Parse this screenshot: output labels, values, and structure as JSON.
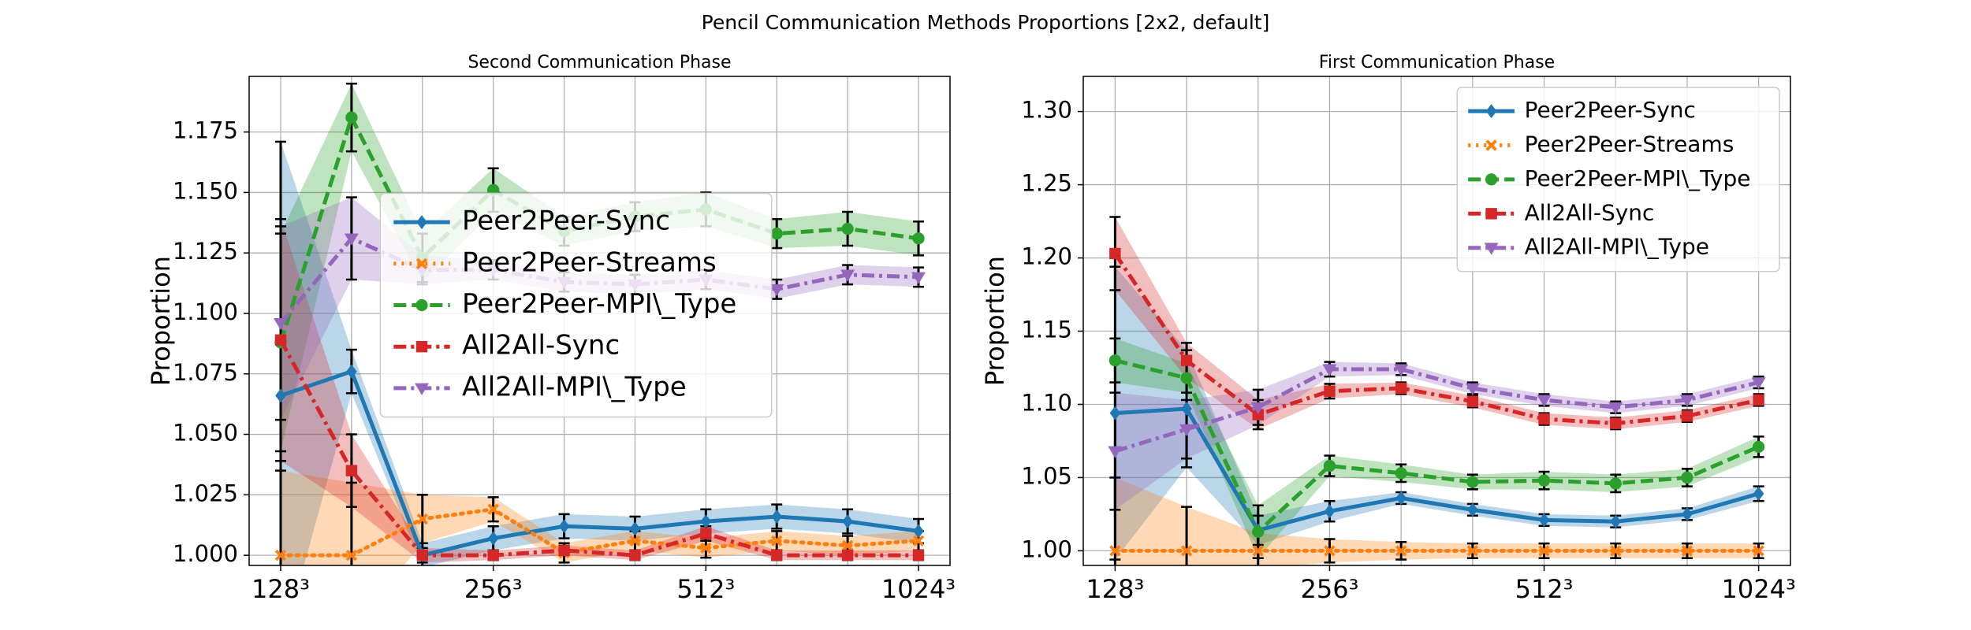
{
  "title": "Pencil Communication Methods Proportions [2x2, default]",
  "chart_data": [
    {
      "type": "line",
      "title": "Second Communication Phase",
      "ylabel": "Proportion",
      "categories": [
        "128³",
        null,
        null,
        "256³",
        null,
        null,
        "512³",
        null,
        null,
        "1024³"
      ],
      "ylim": [
        0.9958,
        1.198
      ],
      "yticks": [
        {
          "value": 1,
          "label": "1.000"
        },
        1.025,
        {
          "value": 1.05,
          "label": "1.050"
        },
        1.075,
        {
          "value": 1.1,
          "label": "1.100"
        },
        1.125,
        {
          "value": 1.15,
          "label": "1.150"
        },
        1.175
      ],
      "grid": true,
      "legend": "center",
      "series": [
        {
          "name": "Peer2Peer-Sync",
          "color": "#1f77b4",
          "linestyle": "solid",
          "marker": "diamond",
          "values": [
            1.066,
            1.076,
            1.0,
            1.007,
            1.012,
            1.011,
            1.014,
            1.016,
            1.014,
            1.01
          ],
          "errors": [
            0.105,
            0.009,
            0.005,
            0.005,
            0.005,
            0.005,
            0.005,
            0.005,
            0.005,
            0.005
          ]
        },
        {
          "name": "Peer2Peer-Streams",
          "color": "#ff7f0e",
          "linestyle": "dotted",
          "marker": "x",
          "values": [
            1.0,
            1.0,
            1.015,
            1.019,
            1.001,
            1.006,
            1.003,
            1.006,
            1.004,
            1.006
          ],
          "errors": [
            0.035,
            0.03,
            0.01,
            0.005,
            0.004,
            0.004,
            0.004,
            0.004,
            0.004,
            0.004
          ]
        },
        {
          "name": "Peer2Peer-MPI\\_Type",
          "color": "#2ca02c",
          "linestyle": "dashed",
          "marker": "circle",
          "values": [
            1.088,
            1.181,
            1.123,
            1.151,
            1.134,
            1.14,
            1.143,
            1.133,
            1.135,
            1.131
          ],
          "errors": [
            0.045,
            0.014,
            0.01,
            0.009,
            0.006,
            0.006,
            0.007,
            0.006,
            0.007,
            0.007
          ]
        },
        {
          "name": "All2All-Sync",
          "color": "#d62728",
          "linestyle": "dashdot",
          "marker": "square",
          "values": [
            1.089,
            1.035,
            1.0,
            1.0,
            1.002,
            1.0,
            1.009,
            1.0,
            1.0,
            1.0
          ],
          "errors": [
            0.05,
            0.015,
            0.003,
            0.002,
            0.002,
            0.002,
            0.003,
            0.002,
            0.002,
            0.002
          ]
        },
        {
          "name": "All2All-MPI\\_Type",
          "color": "#9467bd",
          "linestyle": "dashdot",
          "marker": "triangle-down",
          "values": [
            1.096,
            1.131,
            1.118,
            1.118,
            1.113,
            1.112,
            1.114,
            1.11,
            1.116,
            1.115
          ],
          "errors": [
            0.04,
            0.017,
            0.006,
            0.004,
            0.004,
            0.004,
            0.004,
            0.004,
            0.004,
            0.004
          ]
        }
      ]
    },
    {
      "type": "line",
      "title": "First Communication Phase",
      "ylabel": "Proportion",
      "categories": [
        "128³",
        null,
        null,
        "256³",
        null,
        null,
        "512³",
        null,
        null,
        "1024³"
      ],
      "ylim": [
        0.99,
        1.324
      ],
      "yticks": [
        {
          "value": 1,
          "label": "1.00"
        },
        1.05,
        {
          "value": 1.1,
          "label": "1.10"
        },
        1.15,
        {
          "value": 1.2,
          "label": "1.20"
        },
        1.25,
        {
          "value": 1.3,
          "label": "1.30"
        }
      ],
      "grid": true,
      "legend": "upper right",
      "series": [
        {
          "name": "Peer2Peer-Sync",
          "color": "#1f77b4",
          "linestyle": "solid",
          "marker": "diamond",
          "values": [
            1.094,
            1.097,
            1.014,
            1.027,
            1.036,
            1.028,
            1.021,
            1.02,
            1.025,
            1.039
          ],
          "errors": [
            0.1,
            0.04,
            0.01,
            0.007,
            0.004,
            0.004,
            0.004,
            0.004,
            0.004,
            0.005
          ]
        },
        {
          "name": "Peer2Peer-Streams",
          "color": "#ff7f0e",
          "linestyle": "dotted",
          "marker": "x",
          "values": [
            1.0,
            1.0,
            1.0,
            1.0,
            1.0,
            1.0,
            1.0,
            1.0,
            1.0,
            1.0
          ],
          "errors": [
            0.05,
            0.03,
            0.012,
            0.008,
            0.006,
            0.005,
            0.005,
            0.005,
            0.005,
            0.005
          ]
        },
        {
          "name": "Peer2Peer-MPI\\_Type",
          "color": "#2ca02c",
          "linestyle": "dashed",
          "marker": "circle",
          "values": [
            1.13,
            1.118,
            1.013,
            1.058,
            1.053,
            1.047,
            1.048,
            1.046,
            1.05,
            1.071
          ],
          "errors": [
            0.015,
            0.01,
            0.018,
            0.007,
            0.006,
            0.005,
            0.006,
            0.006,
            0.006,
            0.007
          ]
        },
        {
          "name": "All2All-Sync",
          "color": "#d62728",
          "linestyle": "dashdot",
          "marker": "square",
          "values": [
            1.203,
            1.13,
            1.093,
            1.109,
            1.111,
            1.102,
            1.09,
            1.087,
            1.092,
            1.103
          ],
          "errors": [
            0.025,
            0.012,
            0.01,
            0.005,
            0.004,
            0.004,
            0.004,
            0.004,
            0.004,
            0.004
          ]
        },
        {
          "name": "All2All-MPI\\_Type",
          "color": "#9467bd",
          "linestyle": "dashdot",
          "marker": "triangle-down",
          "values": [
            1.068,
            1.083,
            1.098,
            1.124,
            1.124,
            1.111,
            1.103,
            1.098,
            1.103,
            1.115
          ],
          "errors": [
            0.04,
            0.02,
            0.012,
            0.005,
            0.004,
            0.004,
            0.004,
            0.004,
            0.004,
            0.004
          ]
        }
      ]
    }
  ]
}
